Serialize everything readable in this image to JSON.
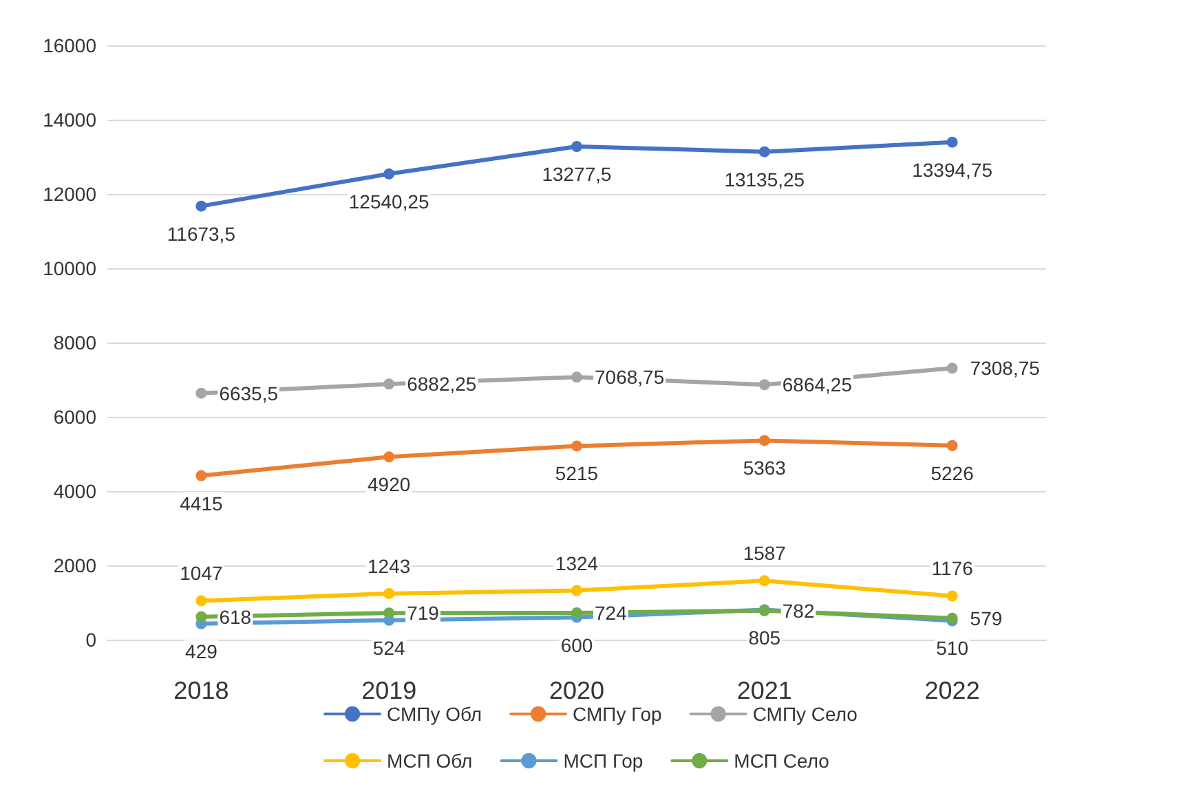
{
  "chart_data": {
    "type": "line",
    "categories": [
      "2018",
      "2019",
      "2020",
      "2021",
      "2022"
    ],
    "series": [
      {
        "name": "СМПу Обл",
        "color": "#4472c4",
        "values": [
          11673.5,
          12540.25,
          13277.5,
          13135.25,
          13394.75
        ],
        "value_labels": [
          "11673,5",
          "12540,25",
          "13277,5",
          "13135,25",
          "13394,75"
        ]
      },
      {
        "name": "СМПу Гор",
        "color": "#ed7d31",
        "values": [
          4415,
          4920,
          5215,
          5363,
          5226
        ],
        "value_labels": [
          "4415",
          "4920",
          "5215",
          "5363",
          "5226"
        ]
      },
      {
        "name": "СМПу Село",
        "color": "#a5a5a5",
        "values": [
          6635.5,
          6882.25,
          7068.75,
          6864.25,
          7308.75
        ],
        "value_labels": [
          "6635,5",
          "6882,25",
          "7068,75",
          "6864,25",
          "7308,75"
        ]
      },
      {
        "name": "МСП Обл",
        "color": "#ffc000",
        "values": [
          1047,
          1243,
          1324,
          1587,
          1176
        ],
        "value_labels": [
          "1047",
          "1243",
          "1324",
          "1587",
          "1176"
        ]
      },
      {
        "name": "МСП Гор",
        "color": "#5b9bd5",
        "values": [
          429,
          524,
          600,
          805,
          510
        ],
        "value_labels": [
          "429",
          "524",
          "600",
          "805",
          "510"
        ]
      },
      {
        "name": "МСП Село",
        "color": "#70ad47",
        "values": [
          618,
          719,
          724,
          782,
          579
        ],
        "value_labels": [
          "618",
          "719",
          "724",
          "782",
          "579"
        ]
      }
    ],
    "ylim": [
      0,
      16000
    ],
    "yticks": [
      0,
      2000,
      4000,
      6000,
      8000,
      10000,
      12000,
      14000,
      16000
    ],
    "grid": "y",
    "legend": "bottom",
    "marker": "circle",
    "line_style": "solid"
  }
}
